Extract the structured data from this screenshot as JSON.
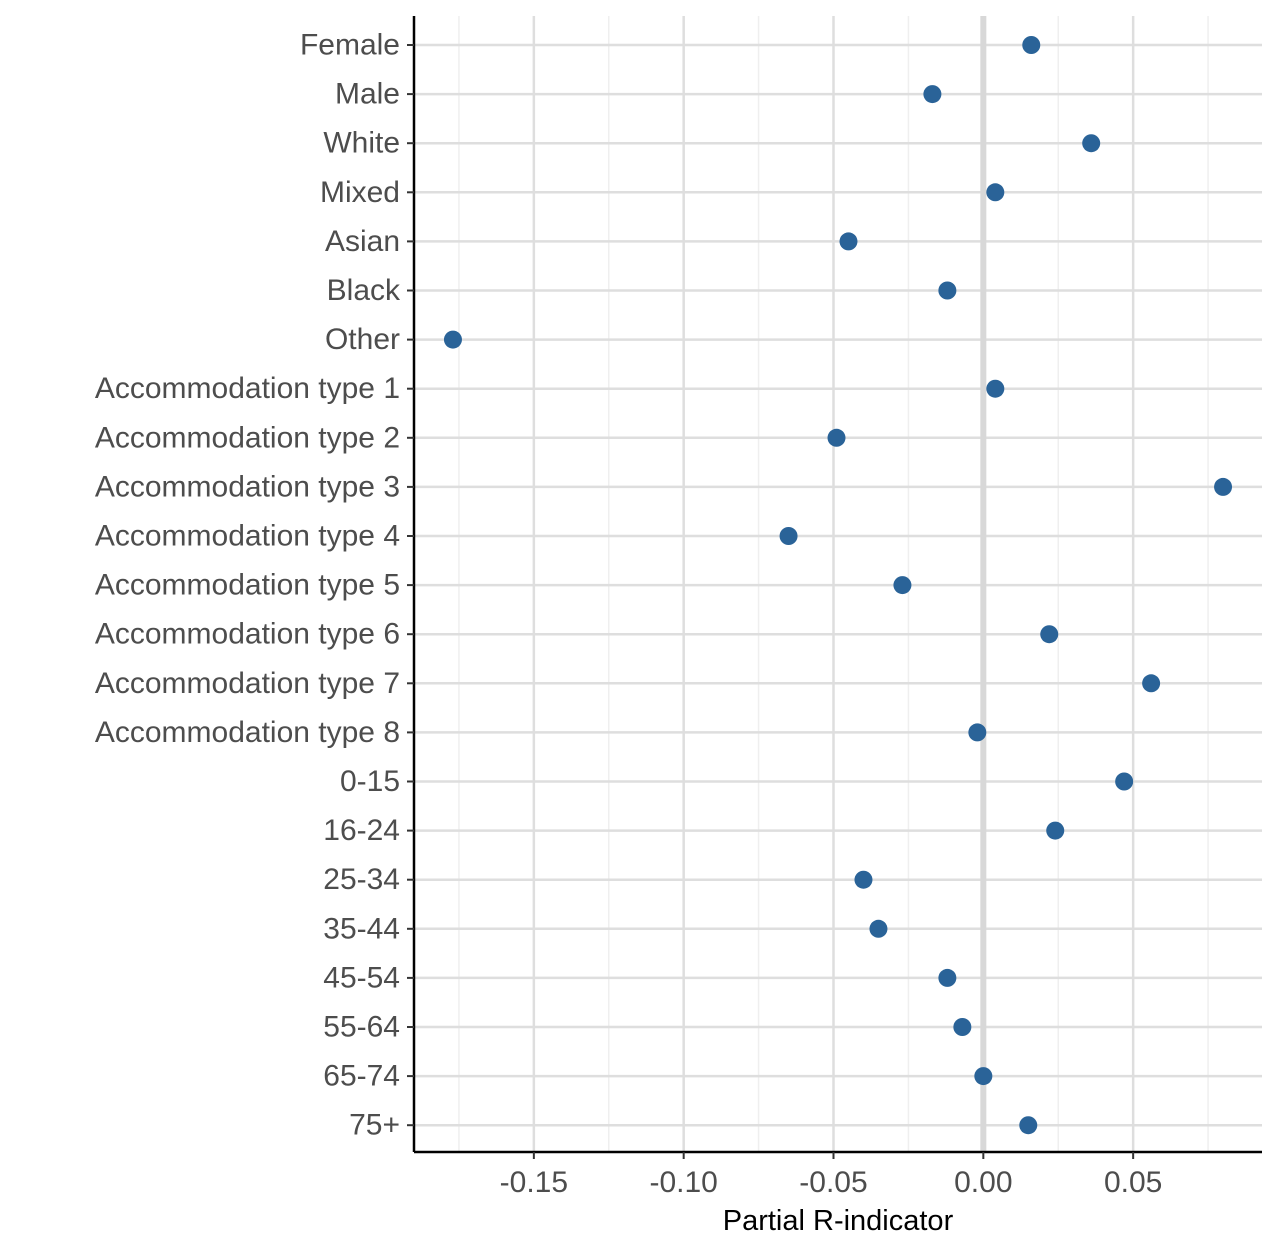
{
  "chart_data": {
    "type": "scatter",
    "xlabel": "Partial R-indicator",
    "ylabel": "",
    "xlim": [
      -0.19,
      0.093
    ],
    "x_ticks": [
      -0.15,
      -0.1,
      -0.05,
      0.0,
      0.05
    ],
    "x_tick_labels": [
      "-0.15",
      "-0.10",
      "-0.05",
      "0.00",
      "0.05"
    ],
    "x_minor_ticks": [
      -0.175,
      -0.125,
      -0.075,
      -0.025,
      0.025,
      0.075
    ],
    "grid": true,
    "zero_line": true,
    "point_color": "#2a6398",
    "categories": [
      "Female",
      "Male",
      "White",
      "Mixed",
      "Asian",
      "Black",
      "Other",
      "Accommodation type 1",
      "Accommodation type 2",
      "Accommodation type 3",
      "Accommodation type 4",
      "Accommodation type 5",
      "Accommodation type 6",
      "Accommodation type 7",
      "Accommodation type 8",
      "0-15",
      "16-24",
      "25-34",
      "35-44",
      "45-54",
      "55-64",
      "65-74",
      "75+"
    ],
    "values": [
      0.016,
      -0.017,
      0.036,
      0.004,
      -0.045,
      -0.012,
      -0.177,
      0.004,
      -0.049,
      0.08,
      -0.065,
      -0.027,
      0.022,
      0.056,
      -0.002,
      0.047,
      0.024,
      -0.04,
      -0.035,
      -0.012,
      -0.007,
      0.0,
      0.015
    ]
  }
}
